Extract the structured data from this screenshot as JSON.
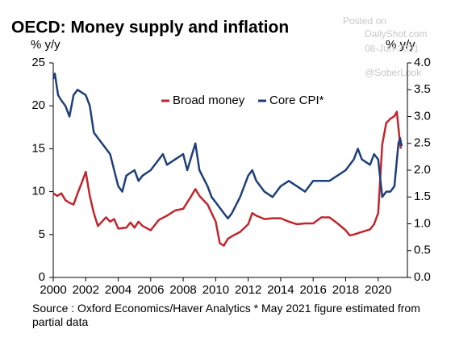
{
  "chart_data": {
    "type": "line",
    "title": "OECD: Money supply and inflation",
    "y_label": "% y/y",
    "y2_label": "% y/y",
    "source": "Source : Oxford Economics/Haver Analytics  * May 2021 figure estimated from partial data",
    "watermark": [
      "Posted on",
      "DailyShot.com",
      "08-Jun-2021",
      "@SoberLook"
    ],
    "xlim": [
      2000,
      2021.8
    ],
    "xticks": [
      2000,
      2002,
      2004,
      2006,
      2008,
      2010,
      2012,
      2014,
      2016,
      2018,
      2020
    ],
    "ylim": [
      0,
      25
    ],
    "yticks": [
      0,
      5,
      10,
      15,
      20,
      25
    ],
    "y2lim": [
      0,
      4
    ],
    "y2ticks": [
      {
        "value": 0,
        "label": "0.0"
      },
      {
        "value": 0.5,
        "label": "0.5"
      },
      {
        "value": 1,
        "label": "1.0"
      },
      {
        "value": 1.5,
        "label": "1.5"
      },
      {
        "value": 2,
        "label": "2.0"
      },
      {
        "value": 2.5,
        "label": "2.5"
      },
      {
        "value": 3,
        "label": "3.0"
      },
      {
        "value": 3.5,
        "label": "3.5"
      },
      {
        "value": 4,
        "label": "4.0"
      }
    ],
    "legend": "top-center",
    "series": [
      {
        "name": "Broad money",
        "color": "#c0262d",
        "x": [
          2000,
          2000.25,
          2000.5,
          2000.75,
          2001,
          2001.25,
          2001.5,
          2001.75,
          2002,
          2002.25,
          2002.5,
          2002.75,
          2003,
          2003.25,
          2003.5,
          2003.75,
          2004,
          2004.5,
          2004.75,
          2005,
          2005.25,
          2005.5,
          2006,
          2006.5,
          2007,
          2007.5,
          2008,
          2008.5,
          2008.75,
          2009,
          2009.5,
          2010,
          2010.25,
          2010.5,
          2010.75,
          2011,
          2011.5,
          2012,
          2012.25,
          2012.5,
          2013,
          2013.5,
          2014,
          2014.5,
          2015,
          2015.5,
          2016,
          2016.5,
          2017,
          2017.5,
          2018,
          2018.25,
          2018.5,
          2019,
          2019.5,
          2019.75,
          2020,
          2020.25,
          2020.5,
          2020.75,
          2021,
          2021.15,
          2021.3,
          2021.4
        ],
        "values": [
          9.8,
          9.5,
          9.8,
          9,
          8.7,
          8.5,
          9.8,
          11,
          12.3,
          9.5,
          7.5,
          6,
          6.5,
          7,
          6.5,
          6.8,
          5.7,
          5.8,
          6.4,
          5.8,
          6.5,
          6,
          5.5,
          6.7,
          7.2,
          7.8,
          8,
          9.5,
          10.3,
          9.5,
          8.5,
          6.5,
          4,
          3.7,
          4.5,
          4.8,
          5.3,
          6.2,
          7.5,
          7.2,
          6.8,
          6.9,
          6.9,
          6.5,
          6.2,
          6.3,
          6.3,
          7,
          7,
          6.3,
          5.5,
          4.9,
          5,
          5.3,
          5.6,
          6.2,
          7.5,
          15.5,
          18,
          18.5,
          18.8,
          19.3,
          16.5,
          15
        ]
      },
      {
        "name": "Core CPI*",
        "color": "#1f3f7a",
        "axis": "y2",
        "x": [
          2000,
          2000.1,
          2000.3,
          2000.5,
          2000.75,
          2001,
          2001.25,
          2001.5,
          2002,
          2002.25,
          2002.5,
          2003,
          2003.5,
          2003.75,
          2004,
          2004.25,
          2004.5,
          2005,
          2005.25,
          2005.5,
          2006,
          2006.5,
          2006.75,
          2007,
          2007.5,
          2008,
          2008.25,
          2008.75,
          2009,
          2009.5,
          2009.75,
          2010,
          2010.5,
          2010.75,
          2011,
          2011.5,
          2012,
          2012.25,
          2012.5,
          2013,
          2013.5,
          2014,
          2014.5,
          2015,
          2015.5,
          2016,
          2016.5,
          2017,
          2017.5,
          2018,
          2018.5,
          2018.75,
          2019,
          2019.5,
          2019.75,
          2020,
          2020.25,
          2020.5,
          2020.75,
          2021,
          2021.25,
          2021.35,
          2021.45
        ],
        "values": [
          3.7,
          3.8,
          3.4,
          3.3,
          3.2,
          3,
          3.4,
          3.5,
          3.4,
          3.2,
          2.7,
          2.5,
          2.3,
          2,
          1.7,
          1.6,
          1.9,
          2,
          1.8,
          1.9,
          2,
          2.2,
          2.3,
          2.1,
          2.2,
          2.3,
          2,
          2.5,
          2,
          1.7,
          1.5,
          1.4,
          1.2,
          1.1,
          1.2,
          1.5,
          1.9,
          2,
          1.8,
          1.6,
          1.5,
          1.7,
          1.8,
          1.7,
          1.6,
          1.8,
          1.8,
          1.8,
          1.9,
          2,
          2.2,
          2.4,
          2.2,
          2.1,
          2.3,
          2.2,
          1.5,
          1.6,
          1.6,
          1.7,
          2.5,
          2.6,
          2.45
        ]
      }
    ]
  }
}
